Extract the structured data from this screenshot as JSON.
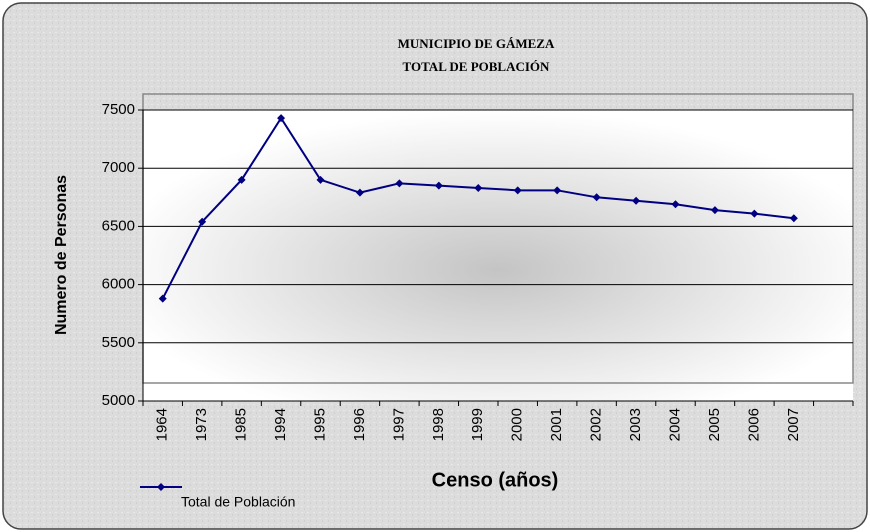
{
  "chart_data": {
    "type": "line",
    "title": [
      "MUNICIPIO DE GÁMEZA",
      "TOTAL DE POBLACIÓN"
    ],
    "x_label": "Censo (años)",
    "y_label": "Numero de Personas",
    "categories": [
      "1964",
      "1973",
      "1985",
      "1994",
      "1995",
      "1996",
      "1997",
      "1998",
      "1999",
      "2000",
      "2001",
      "2002",
      "2003",
      "2004",
      "2005",
      "2006",
      "2007"
    ],
    "series": [
      {
        "name": "Total de Población",
        "color": "#000080",
        "values": [
          5880,
          6540,
          6900,
          7430,
          6900,
          6790,
          6870,
          6850,
          6830,
          6810,
          6810,
          6750,
          6720,
          6690,
          6640,
          6610,
          6570
        ]
      }
    ],
    "ylim": [
      5000,
      7500
    ],
    "yticks": [
      5000,
      5500,
      6000,
      6500,
      7000,
      7500
    ],
    "grid": true,
    "legend": "bottom-left"
  }
}
